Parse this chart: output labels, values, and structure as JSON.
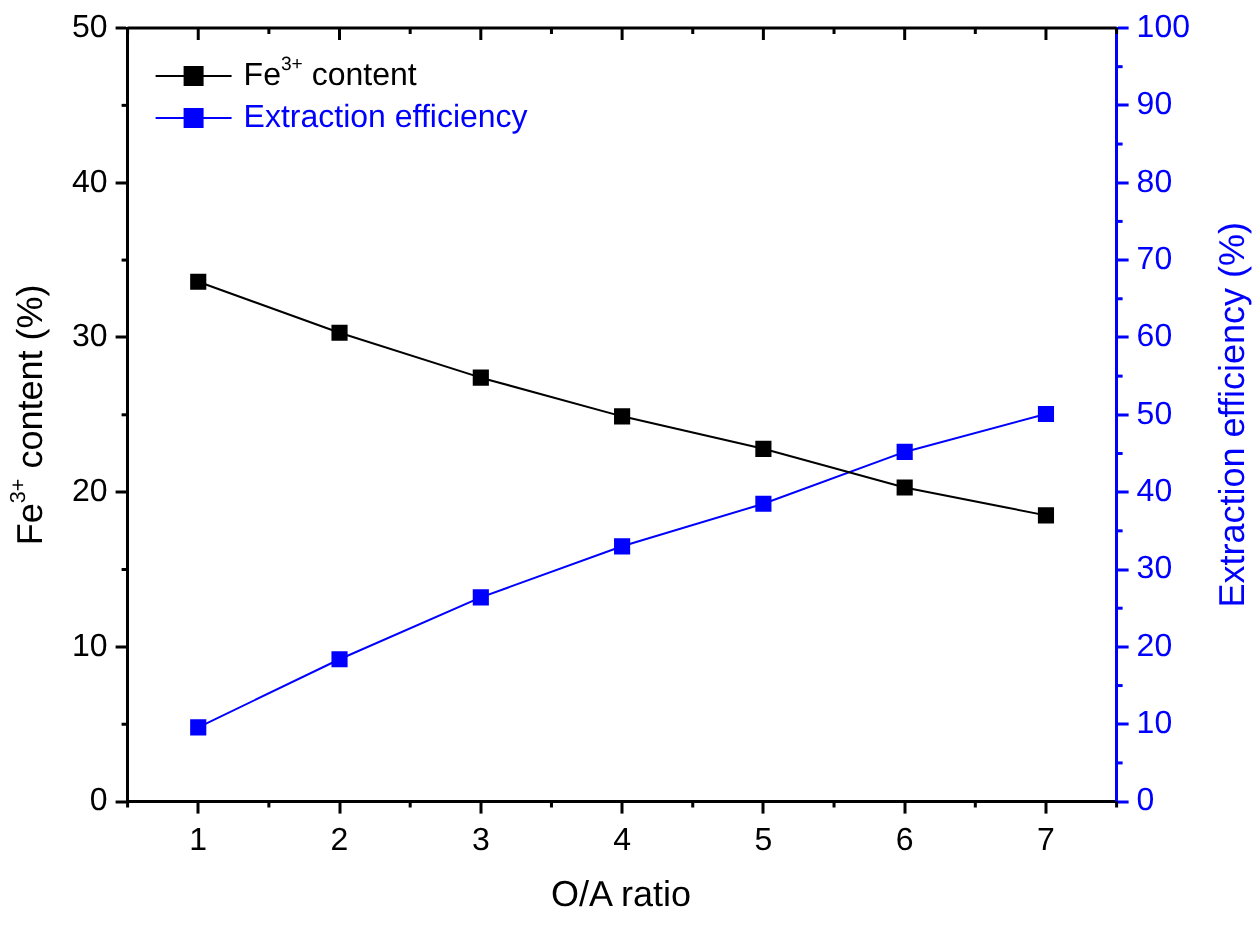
{
  "chart_data": {
    "type": "line",
    "xlabel": "O/A ratio",
    "ylabel": "Fe$^{3+}$ content (%)",
    "y2label": "Extraction efficiency (%)",
    "x": [
      1,
      2,
      3,
      4,
      5,
      6,
      7
    ],
    "series": [
      {
        "name": "Fe$^{3+}$ content",
        "color": "#000000",
        "values": [
          33.6,
          30.3,
          27.4,
          24.9,
          22.8,
          20.3,
          18.5
        ]
      },
      {
        "name": "Extraction efficiency",
        "color": "#0000ff",
        "axis": "y2",
        "values": [
          9.6,
          18.4,
          26.4,
          33.0,
          38.5,
          45.2,
          50.1
        ]
      }
    ],
    "xlim": [
      0.5,
      7.5
    ],
    "xticks": [
      1,
      2,
      3,
      4,
      5,
      6,
      7
    ],
    "ylim": [
      0,
      50
    ],
    "yticks": [
      0,
      10,
      20,
      30,
      40,
      50
    ],
    "y2lim": [
      0,
      100
    ],
    "y2ticks": [
      0,
      10,
      20,
      30,
      40,
      50,
      60,
      70,
      80,
      90,
      100
    ],
    "legend": "top left",
    "marker": "square",
    "line_style": "solid"
  }
}
